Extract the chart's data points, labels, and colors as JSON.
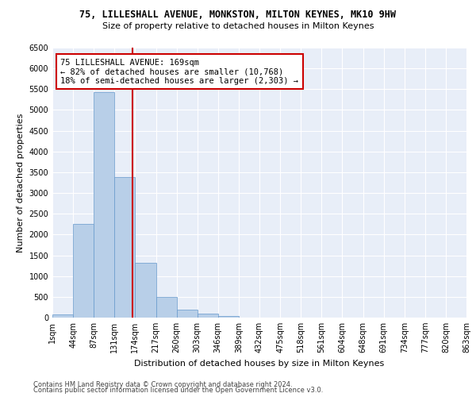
{
  "title": "75, LILLESHALL AVENUE, MONKSTON, MILTON KEYNES, MK10 9HW",
  "subtitle": "Size of property relative to detached houses in Milton Keynes",
  "xlabel": "Distribution of detached houses by size in Milton Keynes",
  "ylabel": "Number of detached properties",
  "footer_line1": "Contains HM Land Registry data © Crown copyright and database right 2024.",
  "footer_line2": "Contains public sector information licensed under the Open Government Licence v3.0.",
  "annotation_line1": "75 LILLESHALL AVENUE: 169sqm",
  "annotation_line2": "← 82% of detached houses are smaller (10,768)",
  "annotation_line3": "18% of semi-detached houses are larger (2,303) →",
  "bin_labels": [
    "1sqm",
    "44sqm",
    "87sqm",
    "131sqm",
    "174sqm",
    "217sqm",
    "260sqm",
    "303sqm",
    "346sqm",
    "389sqm",
    "432sqm",
    "475sqm",
    "518sqm",
    "561sqm",
    "604sqm",
    "648sqm",
    "691sqm",
    "734sqm",
    "777sqm",
    "820sqm",
    "863sqm"
  ],
  "counts": [
    80,
    2260,
    5420,
    3380,
    1310,
    490,
    185,
    90,
    30,
    0,
    0,
    0,
    0,
    0,
    0,
    0,
    0,
    0,
    0,
    0
  ],
  "bar_color": "#b8cfe8",
  "bar_edge_color": "#6699cc",
  "vline_color": "#cc0000",
  "property_bin_index": 3,
  "background_color": "#e8eef8",
  "grid_color": "#ffffff",
  "ylim": [
    0,
    6500
  ],
  "yticks": [
    0,
    500,
    1000,
    1500,
    2000,
    2500,
    3000,
    3500,
    4000,
    4500,
    5000,
    5500,
    6000,
    6500
  ],
  "title_fontsize": 8.5,
  "subtitle_fontsize": 8,
  "ylabel_fontsize": 8,
  "xlabel_fontsize": 8,
  "tick_fontsize": 7,
  "footer_fontsize": 6,
  "annot_fontsize": 7.5
}
